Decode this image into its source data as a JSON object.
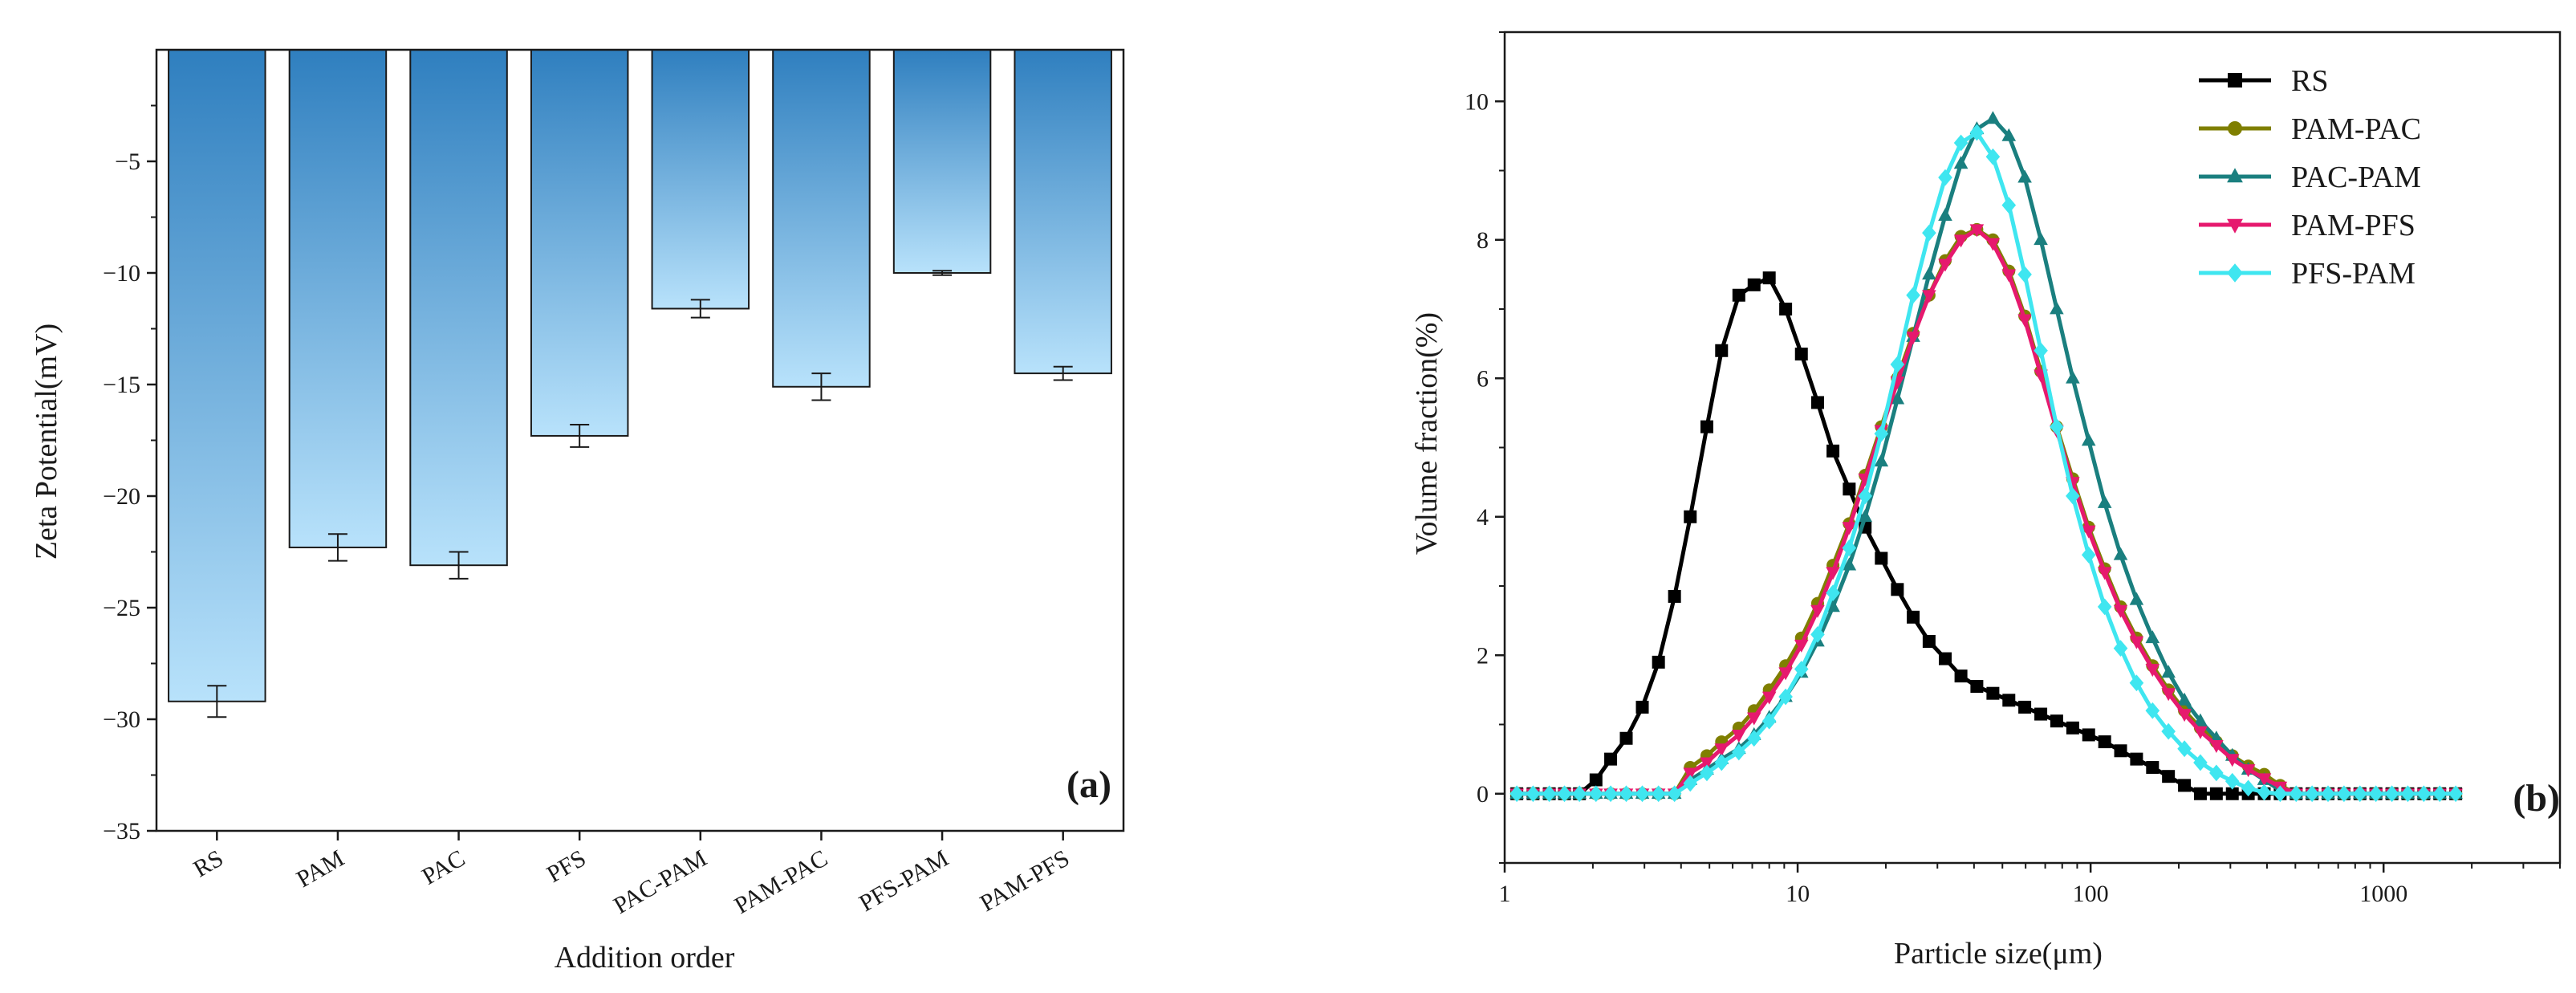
{
  "chart_data": [
    {
      "panel_label": "(a)",
      "type": "bar",
      "categories": [
        "RS",
        "PAM",
        "PAC",
        "PFS",
        "PAC-PAM",
        "PAM-PAC",
        "PFS-PAM",
        "PAM-PFS"
      ],
      "values": [
        -29.2,
        -22.3,
        -23.1,
        -17.3,
        -11.6,
        -15.1,
        -10.0,
        -14.5
      ],
      "errors": [
        0.7,
        0.6,
        0.6,
        0.5,
        0.4,
        0.6,
        0.1,
        0.3
      ],
      "xlabel": "Addition order",
      "ylabel": "Zeta Potential(mV)",
      "ylim": [
        -35,
        0
      ],
      "yticks": [
        -5,
        -10,
        -15,
        -20,
        -25,
        -30,
        -35
      ],
      "ytick_labels": [
        "−5",
        "−10",
        "−15",
        "−20",
        "−25",
        "−30",
        "−35"
      ],
      "bar_gradient": [
        "#2f7fbf",
        "#b8e2fb"
      ],
      "grid": false
    },
    {
      "panel_label": "(b)",
      "type": "line",
      "xscale": "log",
      "xlabel": "Particle size(μm)",
      "ylabel": "Volume fraction(%)",
      "xlim": [
        1,
        4000
      ],
      "ylim": [
        -1,
        11
      ],
      "xticks": [
        1,
        10,
        100,
        1000
      ],
      "xtick_labels": [
        "1",
        "10",
        "100",
        "1000"
      ],
      "yticks": [
        0,
        2,
        4,
        6,
        8,
        10
      ],
      "ytick_labels": [
        "0",
        "2",
        "4",
        "6",
        "8",
        "10"
      ],
      "legend_position": "top-right",
      "grid": false,
      "series": [
        {
          "name": "RS",
          "color": "#000000",
          "marker": "square",
          "x": [
            1.1,
            1.25,
            1.42,
            1.6,
            1.8,
            2.05,
            2.3,
            2.6,
            2.95,
            3.35,
            3.8,
            4.3,
            4.9,
            5.5,
            6.3,
            7.1,
            8.0,
            9.1,
            10.3,
            11.7,
            13.2,
            15.0,
            17.0,
            19.3,
            21.9,
            24.8,
            28.1,
            31.9,
            36.1,
            40.9,
            46.4,
            52.6,
            59.6,
            67.6,
            76.6,
            86.9,
            98.5,
            111.7,
            126.6,
            143.5,
            162.7,
            184.4,
            209.1,
            237.0,
            268.7,
            304.6,
            345.3,
            391.4,
            443.7,
            503.0,
            570.2,
            646.4,
            732.8,
            830.7,
            941.7,
            1068,
            1210,
            1372,
            1555,
            1763
          ],
          "y": [
            0,
            0,
            0,
            0,
            0,
            0.2,
            0.5,
            0.8,
            1.25,
            1.9,
            2.85,
            4.0,
            5.3,
            6.4,
            7.2,
            7.35,
            7.45,
            7.0,
            6.35,
            5.65,
            4.95,
            4.4,
            3.85,
            3.4,
            2.95,
            2.55,
            2.2,
            1.95,
            1.7,
            1.55,
            1.45,
            1.35,
            1.25,
            1.15,
            1.05,
            0.95,
            0.85,
            0.75,
            0.62,
            0.5,
            0.38,
            0.25,
            0.12,
            0,
            0,
            0,
            0,
            0,
            0,
            0,
            0,
            0,
            0,
            0,
            0,
            0,
            0,
            0,
            0,
            0
          ]
        },
        {
          "name": "PAM-PAC",
          "color": "#7f7f00",
          "marker": "circle",
          "x": [
            1.1,
            1.25,
            1.42,
            1.6,
            1.8,
            2.05,
            2.3,
            2.6,
            2.95,
            3.35,
            3.8,
            4.3,
            4.9,
            5.5,
            6.3,
            7.1,
            8.0,
            9.1,
            10.3,
            11.7,
            13.2,
            15.0,
            17.0,
            19.3,
            21.9,
            24.8,
            28.1,
            31.9,
            36.1,
            40.9,
            46.4,
            52.6,
            59.6,
            67.6,
            76.6,
            86.9,
            98.5,
            111.7,
            126.6,
            143.5,
            162.7,
            184.4,
            209.1,
            237.0,
            268.7,
            304.6,
            345.3,
            391.4,
            443.7,
            503.0,
            570.2,
            646.4,
            732.8,
            830.7,
            941.7,
            1068,
            1210,
            1372,
            1555,
            1763
          ],
          "y": [
            0,
            0,
            0,
            0,
            0,
            0,
            0,
            0,
            0,
            0,
            0,
            0.38,
            0.55,
            0.75,
            0.95,
            1.2,
            1.5,
            1.85,
            2.25,
            2.75,
            3.3,
            3.9,
            4.6,
            5.3,
            6.0,
            6.65,
            7.2,
            7.7,
            8.05,
            8.15,
            8.0,
            7.55,
            6.9,
            6.1,
            5.3,
            4.55,
            3.85,
            3.25,
            2.7,
            2.25,
            1.85,
            1.5,
            1.2,
            0.95,
            0.75,
            0.55,
            0.4,
            0.28,
            0.12,
            0,
            0,
            0,
            0,
            0,
            0,
            0,
            0,
            0,
            0,
            0
          ]
        },
        {
          "name": "PAC-PAM",
          "color": "#1a7f7f",
          "marker": "triangle-up",
          "x": [
            1.1,
            1.25,
            1.42,
            1.6,
            1.8,
            2.05,
            2.3,
            2.6,
            2.95,
            3.35,
            3.8,
            4.3,
            4.9,
            5.5,
            6.3,
            7.1,
            8.0,
            9.1,
            10.3,
            11.7,
            13.2,
            15.0,
            17.0,
            19.3,
            21.9,
            24.8,
            28.1,
            31.9,
            36.1,
            40.9,
            46.4,
            52.6,
            59.6,
            67.6,
            76.6,
            86.9,
            98.5,
            111.7,
            126.6,
            143.5,
            162.7,
            184.4,
            209.1,
            237.0,
            268.7,
            304.6,
            345.3,
            391.4,
            443.7,
            503.0,
            570.2,
            646.4,
            732.8,
            830.7,
            941.7,
            1068,
            1210,
            1372,
            1555,
            1763
          ],
          "y": [
            0,
            0,
            0,
            0,
            0,
            0,
            0,
            0,
            0,
            0,
            0,
            0.2,
            0.35,
            0.5,
            0.65,
            0.85,
            1.1,
            1.4,
            1.75,
            2.2,
            2.7,
            3.3,
            4.0,
            4.8,
            5.7,
            6.6,
            7.5,
            8.35,
            9.1,
            9.6,
            9.75,
            9.5,
            8.9,
            8.0,
            7.0,
            6.0,
            5.1,
            4.2,
            3.45,
            2.8,
            2.25,
            1.75,
            1.35,
            1.05,
            0.8,
            0.55,
            0.35,
            0.2,
            0.05,
            0,
            0,
            0,
            0,
            0,
            0,
            0,
            0,
            0,
            0,
            0
          ]
        },
        {
          "name": "PAM-PFS",
          "color": "#e6196e",
          "marker": "triangle-down",
          "x": [
            1.1,
            1.25,
            1.42,
            1.6,
            1.8,
            2.05,
            2.3,
            2.6,
            2.95,
            3.35,
            3.8,
            4.3,
            4.9,
            5.5,
            6.3,
            7.1,
            8.0,
            9.1,
            10.3,
            11.7,
            13.2,
            15.0,
            17.0,
            19.3,
            21.9,
            24.8,
            28.1,
            31.9,
            36.1,
            40.9,
            46.4,
            52.6,
            59.6,
            67.6,
            76.6,
            86.9,
            98.5,
            111.7,
            126.6,
            143.5,
            162.7,
            184.4,
            209.1,
            237.0,
            268.7,
            304.6,
            345.3,
            391.4,
            443.7,
            503.0,
            570.2,
            646.4,
            732.8,
            830.7,
            941.7,
            1068,
            1210,
            1372,
            1555,
            1763
          ],
          "y": [
            0,
            0,
            0,
            0,
            0,
            0,
            0,
            0,
            0,
            0,
            0,
            0.3,
            0.45,
            0.65,
            0.85,
            1.1,
            1.4,
            1.75,
            2.15,
            2.65,
            3.2,
            3.85,
            4.55,
            5.25,
            5.95,
            6.6,
            7.2,
            7.65,
            8.0,
            8.15,
            7.95,
            7.5,
            6.85,
            6.05,
            5.25,
            4.5,
            3.8,
            3.2,
            2.65,
            2.2,
            1.8,
            1.45,
            1.15,
            0.9,
            0.7,
            0.5,
            0.35,
            0.22,
            0.1,
            0,
            0,
            0,
            0,
            0,
            0,
            0,
            0,
            0,
            0,
            0
          ]
        },
        {
          "name": "PFS-PAM",
          "color": "#3fe6f0",
          "marker": "diamond",
          "x": [
            1.1,
            1.25,
            1.42,
            1.6,
            1.8,
            2.05,
            2.3,
            2.6,
            2.95,
            3.35,
            3.8,
            4.3,
            4.9,
            5.5,
            6.3,
            7.1,
            8.0,
            9.1,
            10.3,
            11.7,
            13.2,
            15.0,
            17.0,
            19.3,
            21.9,
            24.8,
            28.1,
            31.9,
            36.1,
            40.9,
            46.4,
            52.6,
            59.6,
            67.6,
            76.6,
            86.9,
            98.5,
            111.7,
            126.6,
            143.5,
            162.7,
            184.4,
            209.1,
            237.0,
            268.7,
            304.6,
            345.3,
            391.4,
            443.7,
            503.0,
            570.2,
            646.4,
            732.8,
            830.7,
            941.7,
            1068,
            1210,
            1372,
            1555,
            1763
          ],
          "y": [
            0,
            0,
            0,
            0,
            0,
            0,
            0,
            0,
            0,
            0,
            0,
            0.15,
            0.3,
            0.45,
            0.6,
            0.8,
            1.05,
            1.4,
            1.8,
            2.3,
            2.9,
            3.55,
            4.3,
            5.2,
            6.2,
            7.2,
            8.1,
            8.9,
            9.4,
            9.55,
            9.2,
            8.5,
            7.5,
            6.4,
            5.3,
            4.3,
            3.45,
            2.7,
            2.1,
            1.6,
            1.2,
            0.9,
            0.65,
            0.45,
            0.3,
            0.18,
            0.08,
            0.02,
            0,
            0,
            0,
            0,
            0,
            0,
            0,
            0,
            0,
            0,
            0,
            0
          ]
        }
      ]
    }
  ]
}
